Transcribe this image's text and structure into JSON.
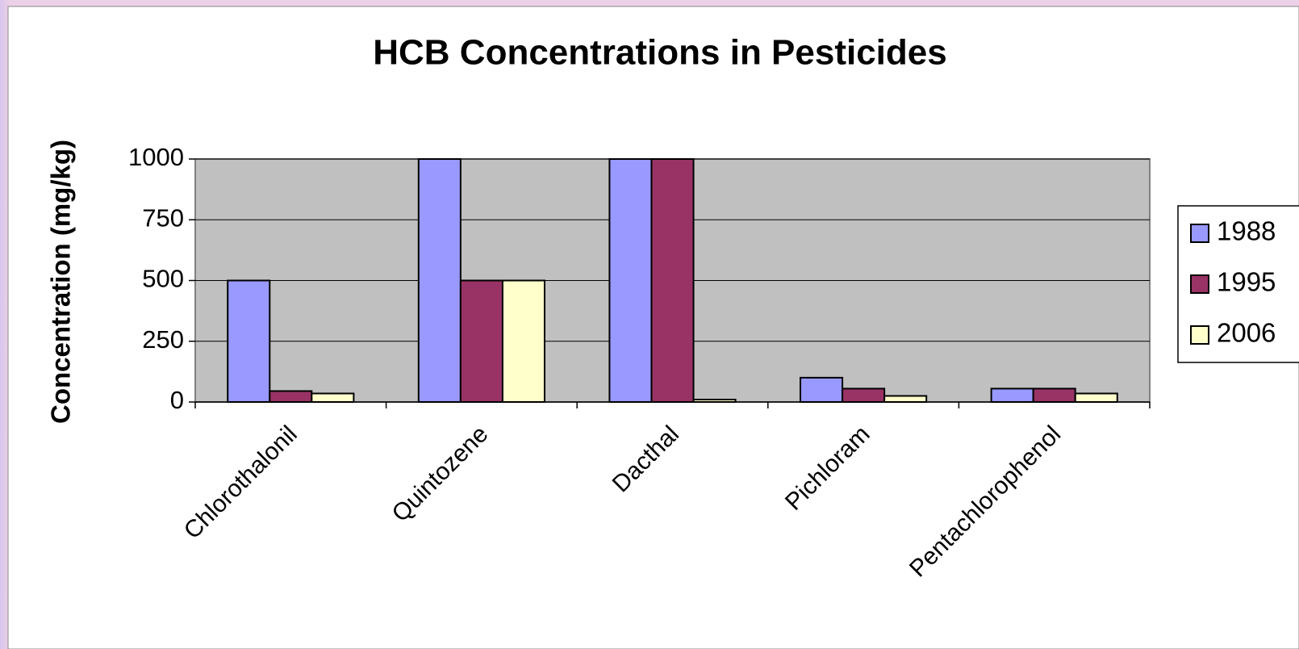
{
  "chart_data": {
    "type": "bar",
    "title": "HCB Concentrations in Pesticides",
    "y_label": "Concentration (mg/kg)",
    "categories": [
      "Chlorothalonil",
      "Quintozene",
      "Dacthal",
      "Pichloram",
      "Pentachlorophenol"
    ],
    "series": [
      {
        "name": "1988",
        "color": "#9999ff",
        "values": [
          500,
          1000,
          1000,
          100,
          55
        ]
      },
      {
        "name": "1995",
        "color": "#993366",
        "values": [
          45,
          500,
          1000,
          55,
          55
        ]
      },
      {
        "name": "2006",
        "color": "#ffffcc",
        "values": [
          35,
          500,
          10,
          25,
          35
        ]
      }
    ],
    "ylim": [
      0,
      1000
    ],
    "yticks": [
      0,
      250,
      500,
      750,
      1000
    ],
    "grid": true,
    "plot_background": "#c0c0c0",
    "legend": "right"
  }
}
